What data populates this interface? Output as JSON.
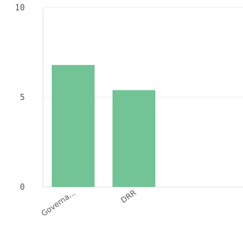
{
  "chart_data": {
    "type": "bar",
    "categories": [
      "Governa...",
      "DRR"
    ],
    "values": [
      6.8,
      5.4
    ],
    "ylim": [
      0,
      10
    ],
    "yticks": [
      "0",
      "5",
      "10"
    ],
    "title": "",
    "xlabel": "",
    "ylabel": "",
    "grid": "horizontal",
    "bar_color": "#72c395",
    "grid_color": "#eeeeee",
    "axis_color": "#e2e2e2",
    "text_color": "#555555"
  }
}
